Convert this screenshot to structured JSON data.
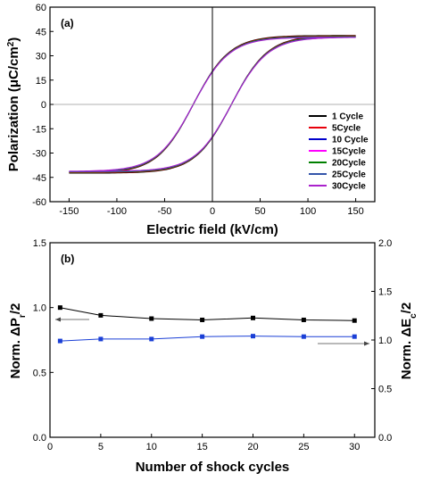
{
  "chart_data": [
    {
      "type": "line",
      "panel_label": "(a)",
      "xlabel": "Electric field (kV/cm)",
      "ylabel_main": "Polarization (",
      "ylabel_unit": "μC/cm",
      "ylabel_sup": "2",
      "ylabel_end": ")",
      "xlim": [
        -170,
        170
      ],
      "ylim": [
        -60,
        60
      ],
      "xticks": [
        -150,
        -100,
        -50,
        0,
        50,
        100,
        150
      ],
      "yticks": [
        -60,
        -45,
        -30,
        -15,
        0,
        15,
        30,
        45,
        60
      ],
      "legend_position": "right",
      "loop_model": {
        "emax": 150,
        "pmax": 42,
        "coercive_field": 20,
        "steepness": 38
      },
      "series": [
        {
          "name": "1 Cycle",
          "color": "#000000",
          "pr": 15.5,
          "pmax": 42.5
        },
        {
          "name": "5Cycle",
          "color": "#e8000b",
          "pr": 15.6,
          "pmax": 42.2
        },
        {
          "name": "10 Cycle",
          "color": "#0000cc",
          "pr": 16.0,
          "pmax": 41.8
        },
        {
          "name": "15Cycle",
          "color": "#ff00ff",
          "pr": 15.8,
          "pmax": 41.5
        },
        {
          "name": "20Cycle",
          "color": "#008000",
          "pr": 16.3,
          "pmax": 41.9
        },
        {
          "name": "25Cycle",
          "color": "#3355aa",
          "pr": 15.9,
          "pmax": 41.6
        },
        {
          "name": "30Cycle",
          "color": "#aa22cc",
          "pr": 15.7,
          "pmax": 41.3
        }
      ]
    },
    {
      "type": "line",
      "panel_label": "(b)",
      "xlabel": "Number of shock cycles",
      "ylabel_left_main": "Norm. ΔP",
      "ylabel_left_sub": "r",
      "ylabel_left_end": "/2",
      "ylabel_right_main": "Norm. ΔE",
      "ylabel_right_sub": "c",
      "ylabel_right_end": "/2",
      "xlim": [
        0,
        32
      ],
      "ylim_left": [
        0.0,
        1.5
      ],
      "ylim_right": [
        0.0,
        2.0
      ],
      "xticks": [
        0,
        5,
        10,
        15,
        20,
        25,
        30
      ],
      "yticks_left": [
        "0.0",
        "0.5",
        "1.0",
        "1.5"
      ],
      "yticks_right": [
        "0.0",
        "0.5",
        "1.0",
        "1.5",
        "2.0"
      ],
      "series": [
        {
          "name": "Norm. ΔPr/2",
          "axis": "left",
          "color": "#000000",
          "x": [
            1,
            5,
            10,
            15,
            20,
            25,
            30
          ],
          "y": [
            1.0,
            0.94,
            0.915,
            0.905,
            0.92,
            0.905,
            0.9
          ]
        },
        {
          "name": "Norm. ΔEc/2",
          "axis": "right",
          "color": "#1a3fd6",
          "x": [
            1,
            5,
            10,
            15,
            20,
            25,
            30
          ],
          "y": [
            0.99,
            1.01,
            1.01,
            1.035,
            1.04,
            1.035,
            1.035
          ]
        }
      ]
    }
  ]
}
